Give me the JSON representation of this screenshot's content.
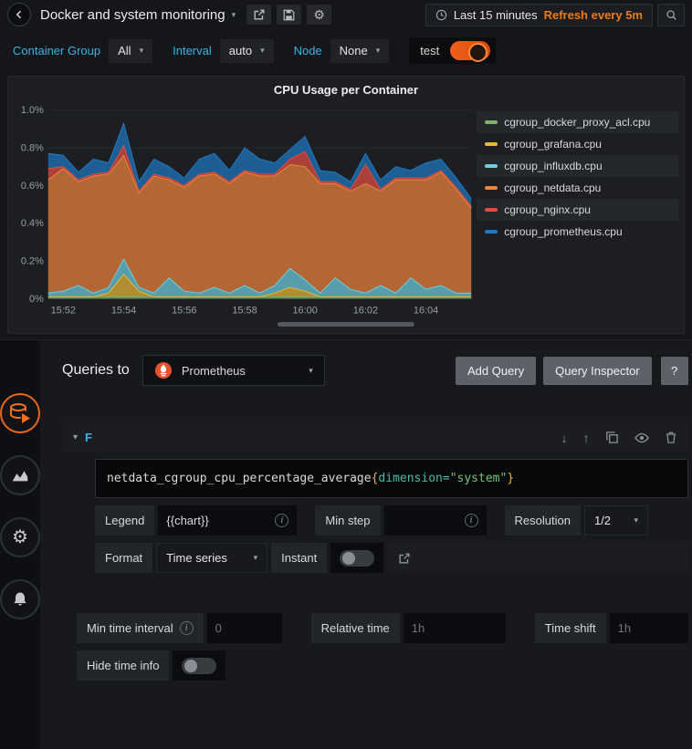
{
  "navbar": {
    "title": "Docker and system monitoring",
    "time_range": "Last 15 minutes",
    "refresh_label": "Refresh every 5m"
  },
  "variables": [
    {
      "label": "Container Group",
      "value": "All"
    },
    {
      "label": "Interval",
      "value": "auto"
    },
    {
      "label": "Node",
      "value": "None"
    }
  ],
  "test_switch": {
    "label": "test",
    "on": true
  },
  "panel": {
    "title": "CPU Usage per Container"
  },
  "chart_data": {
    "type": "area",
    "stacked": true,
    "title": "CPU Usage per Container",
    "xlabel": "",
    "ylabel": "",
    "ylim": [
      0,
      1.0
    ],
    "grid": true,
    "legend_position": "right",
    "n_points": 29,
    "y_ticks": [
      {
        "v": 0,
        "label": "0%"
      },
      {
        "v": 0.2,
        "label": "0.2%"
      },
      {
        "v": 0.4,
        "label": "0.4%"
      },
      {
        "v": 0.6,
        "label": "0.6%"
      },
      {
        "v": 0.8,
        "label": "0.8%"
      },
      {
        "v": 1.0,
        "label": "1.0%"
      }
    ],
    "x_ticks": [
      {
        "i": 1,
        "label": "15:52"
      },
      {
        "i": 5,
        "label": "15:54"
      },
      {
        "i": 9,
        "label": "15:56"
      },
      {
        "i": 13,
        "label": "15:58"
      },
      {
        "i": 17,
        "label": "16:00"
      },
      {
        "i": 21,
        "label": "16:02"
      },
      {
        "i": 25,
        "label": "16:04"
      }
    ],
    "series": [
      {
        "name": "cgroup_docker_proxy_acl.cpu",
        "color": "#7EB26D",
        "values": [
          0.01,
          0.01,
          0.01,
          0.01,
          0.01,
          0.01,
          0.01,
          0.01,
          0.01,
          0.01,
          0.01,
          0.01,
          0.01,
          0.01,
          0.01,
          0.01,
          0.01,
          0.01,
          0.01,
          0.01,
          0.01,
          0.01,
          0.01,
          0.01,
          0.01,
          0.01,
          0.01,
          0.01,
          0.01
        ]
      },
      {
        "name": "cgroup_grafana.cpu",
        "color": "#EAB839",
        "values": [
          0,
          0,
          0,
          0,
          0.02,
          0.12,
          0.03,
          0,
          0,
          0,
          0,
          0,
          0,
          0,
          0,
          0.02,
          0.05,
          0.03,
          0,
          0,
          0,
          0,
          0,
          0,
          0,
          0,
          0,
          0,
          0
        ]
      },
      {
        "name": "cgroup_influxdb.cpu",
        "color": "#6ED0E0",
        "values": [
          0.02,
          0.03,
          0.06,
          0.02,
          0.03,
          0.08,
          0.02,
          0.02,
          0.1,
          0.03,
          0.02,
          0.05,
          0.02,
          0.06,
          0.02,
          0.04,
          0.1,
          0.06,
          0.02,
          0.1,
          0.04,
          0.02,
          0.06,
          0.02,
          0.1,
          0.04,
          0.06,
          0.02,
          0.02
        ]
      },
      {
        "name": "cgroup_netdata.cpu",
        "color": "#EF843C",
        "values": [
          0.6,
          0.65,
          0.55,
          0.62,
          0.6,
          0.55,
          0.5,
          0.62,
          0.52,
          0.55,
          0.62,
          0.6,
          0.58,
          0.6,
          0.62,
          0.58,
          0.55,
          0.6,
          0.58,
          0.5,
          0.52,
          0.58,
          0.5,
          0.6,
          0.52,
          0.58,
          0.6,
          0.55,
          0.45
        ]
      },
      {
        "name": "cgroup_nginx.cpu",
        "color": "#E24D42",
        "values": [
          0.06,
          0.01,
          0.01,
          0.01,
          0.01,
          0.05,
          0.01,
          0.01,
          0.01,
          0.01,
          0.01,
          0.01,
          0.01,
          0.01,
          0.01,
          0.01,
          0.03,
          0.08,
          0.01,
          0.01,
          0.01,
          0.1,
          0.01,
          0.01,
          0.01,
          0.01,
          0.01,
          0.01,
          0.01
        ]
      },
      {
        "name": "cgroup_prometheus.cpu",
        "color": "#1F78C1",
        "values": [
          0.08,
          0.06,
          0.04,
          0.08,
          0.05,
          0.12,
          0.05,
          0.08,
          0.06,
          0.04,
          0.08,
          0.1,
          0.06,
          0.12,
          0.08,
          0.06,
          0.05,
          0.08,
          0.06,
          0.05,
          0.04,
          0.06,
          0.05,
          0.06,
          0.04,
          0.08,
          0.06,
          0.05,
          0.04
        ]
      }
    ]
  },
  "editor": {
    "header": "Queries to",
    "datasource": "Prometheus",
    "buttons": {
      "add_query": "Add Query",
      "query_inspector": "Query Inspector",
      "help": "?"
    },
    "query": {
      "ref_id": "F",
      "expr": "netdata_cgroup_cpu_percentage_average{dimension=\"system\"}",
      "tokens": [
        {
          "text": "netdata_cgroup_cpu_percentage_average",
          "type": "metric"
        },
        {
          "text": "{",
          "type": "brace"
        },
        {
          "text": "dimension",
          "type": "label"
        },
        {
          "text": "=",
          "type": "operator"
        },
        {
          "text": "\"system\"",
          "type": "string"
        },
        {
          "text": "}",
          "type": "brace"
        }
      ],
      "legend": {
        "label": "Legend",
        "value": "{{chart}}"
      },
      "min_step": {
        "label": "Min step",
        "value": ""
      },
      "resolution": {
        "label": "Resolution",
        "value": "1/2"
      },
      "format": {
        "label": "Format",
        "value": "Time series"
      },
      "instant": {
        "label": "Instant",
        "on": false
      }
    },
    "time_options": {
      "min_time_interval": {
        "label": "Min time interval",
        "placeholder": "0"
      },
      "relative_time": {
        "label": "Relative time",
        "placeholder": "1h"
      },
      "time_shift": {
        "label": "Time shift",
        "placeholder": "1h"
      },
      "hide_time_info": {
        "label": "Hide time info",
        "on": false
      }
    }
  },
  "icons": {
    "caret_down": "▾",
    "gear": "⚙",
    "arrow_down": "↓",
    "arrow_up": "↑"
  },
  "colors": {
    "accent_orange": "#eb7b18",
    "variable_label_blue": "#33b5e5",
    "ref_id_blue": "#33b5e5",
    "prometheus_brand": "#e6522c"
  }
}
